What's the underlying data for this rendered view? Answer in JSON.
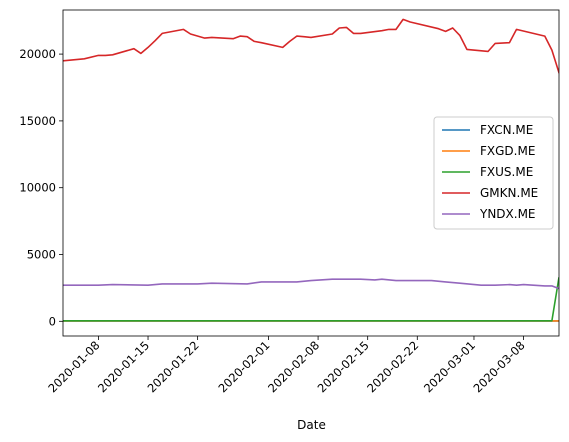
{
  "chart_data": {
    "type": "line",
    "title": "",
    "xlabel": "Date",
    "ylabel": "",
    "x_range": [
      "2020-01-03",
      "2020-03-13"
    ],
    "ylim": [
      -1100,
      23300
    ],
    "x_ticks": [
      "2020-01-08",
      "2020-01-15",
      "2020-01-22",
      "2020-02-01",
      "2020-02-08",
      "2020-02-15",
      "2020-02-22",
      "2020-03-01",
      "2020-03-08"
    ],
    "y_ticks": [
      0,
      5000,
      10000,
      15000,
      20000
    ],
    "grid": false,
    "legend_position": "center-right",
    "series": [
      {
        "name": "FXCN.ME",
        "color": "#1f77b4",
        "points": [
          [
            "2020-01-03",
            20
          ],
          [
            "2020-03-13",
            20
          ]
        ]
      },
      {
        "name": "FXGD.ME",
        "color": "#ff7f0e",
        "points": [
          [
            "2020-01-03",
            30
          ],
          [
            "2020-03-13",
            30
          ]
        ]
      },
      {
        "name": "FXUS.ME",
        "color": "#2ca02c",
        "points": [
          [
            "2020-01-03",
            40
          ],
          [
            "2020-03-12",
            40
          ],
          [
            "2020-03-13",
            3300
          ]
        ]
      },
      {
        "name": "GMKN.ME",
        "color": "#d62728",
        "points": [
          [
            "2020-01-03",
            19500
          ],
          [
            "2020-01-06",
            19650
          ],
          [
            "2020-01-08",
            19900
          ],
          [
            "2020-01-09",
            19900
          ],
          [
            "2020-01-10",
            19950
          ],
          [
            "2020-01-13",
            20400
          ],
          [
            "2020-01-14",
            20050
          ],
          [
            "2020-01-15",
            20500
          ],
          [
            "2020-01-16",
            21000
          ],
          [
            "2020-01-17",
            21550
          ],
          [
            "2020-01-20",
            21850
          ],
          [
            "2020-01-21",
            21500
          ],
          [
            "2020-01-23",
            21200
          ],
          [
            "2020-01-24",
            21250
          ],
          [
            "2020-01-27",
            21150
          ],
          [
            "2020-01-28",
            21350
          ],
          [
            "2020-01-29",
            21300
          ],
          [
            "2020-01-30",
            20950
          ],
          [
            "2020-01-31",
            20850
          ],
          [
            "2020-02-03",
            20500
          ],
          [
            "2020-02-04",
            20950
          ],
          [
            "2020-02-05",
            21350
          ],
          [
            "2020-02-06",
            21300
          ],
          [
            "2020-02-07",
            21250
          ],
          [
            "2020-02-10",
            21500
          ],
          [
            "2020-02-11",
            21950
          ],
          [
            "2020-02-12",
            22000
          ],
          [
            "2020-02-13",
            21550
          ],
          [
            "2020-02-14",
            21550
          ],
          [
            "2020-02-17",
            21750
          ],
          [
            "2020-02-18",
            21850
          ],
          [
            "2020-02-19",
            21850
          ],
          [
            "2020-02-20",
            22600
          ],
          [
            "2020-02-21",
            22400
          ],
          [
            "2020-02-25",
            21900
          ],
          [
            "2020-02-26",
            21700
          ],
          [
            "2020-02-27",
            21950
          ],
          [
            "2020-02-28",
            21400
          ],
          [
            "2020-02-29",
            20350
          ],
          [
            "2020-03-03",
            20200
          ],
          [
            "2020-03-04",
            20800
          ],
          [
            "2020-03-06",
            20850
          ],
          [
            "2020-03-07",
            21850
          ],
          [
            "2020-03-11",
            21350
          ],
          [
            "2020-03-12",
            20300
          ],
          [
            "2020-03-13",
            18600
          ],
          [
            "2020-03-14",
            18000
          ]
        ]
      },
      {
        "name": "YNDX.ME",
        "color": "#9467bd",
        "points": [
          [
            "2020-01-03",
            2700
          ],
          [
            "2020-01-08",
            2700
          ],
          [
            "2020-01-10",
            2750
          ],
          [
            "2020-01-15",
            2700
          ],
          [
            "2020-01-17",
            2800
          ],
          [
            "2020-01-22",
            2800
          ],
          [
            "2020-01-24",
            2850
          ],
          [
            "2020-01-29",
            2800
          ],
          [
            "2020-01-31",
            2950
          ],
          [
            "2020-02-05",
            2950
          ],
          [
            "2020-02-07",
            3050
          ],
          [
            "2020-02-10",
            3150
          ],
          [
            "2020-02-14",
            3150
          ],
          [
            "2020-02-16",
            3100
          ],
          [
            "2020-02-17",
            3150
          ],
          [
            "2020-02-19",
            3050
          ],
          [
            "2020-02-21",
            3050
          ],
          [
            "2020-02-24",
            3050
          ],
          [
            "2020-02-26",
            2950
          ],
          [
            "2020-02-28",
            2850
          ],
          [
            "2020-03-02",
            2700
          ],
          [
            "2020-03-04",
            2700
          ],
          [
            "2020-03-06",
            2750
          ],
          [
            "2020-03-07",
            2700
          ],
          [
            "2020-03-08",
            2750
          ],
          [
            "2020-03-11",
            2650
          ],
          [
            "2020-03-12",
            2650
          ],
          [
            "2020-03-13",
            2450
          ],
          [
            "2020-03-14",
            2450
          ]
        ]
      }
    ]
  }
}
